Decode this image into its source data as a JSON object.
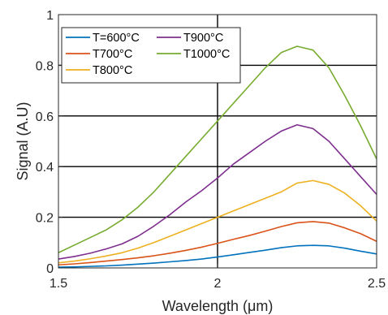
{
  "chart_data": {
    "type": "line",
    "xlabel": "Wavelength (",
    "xlabel_unit": "μm",
    "xlabel_close": ")",
    "ylabel": "Signal (A.U)",
    "xlim": [
      1.5,
      2.5
    ],
    "ylim": [
      0,
      1
    ],
    "xticks": [
      1.5,
      2,
      2.5
    ],
    "xtick_labels": [
      "1.5",
      "2",
      "2.5"
    ],
    "yticks": [
      0,
      0.2,
      0.4,
      0.6,
      0.8,
      1
    ],
    "ytick_labels": [
      "0",
      "0.2",
      "0.4",
      "0.6",
      "0.8",
      "1"
    ],
    "grid": true,
    "legend_position": "top-left",
    "legend_columns": 2,
    "series": [
      {
        "name": "T=600°C",
        "color": "#0072BD",
        "x": [
          1.5,
          1.55,
          1.6,
          1.65,
          1.7,
          1.75,
          1.8,
          1.85,
          1.9,
          1.95,
          2.0,
          2.05,
          2.1,
          2.15,
          2.2,
          2.25,
          2.3,
          2.35,
          2.4,
          2.45,
          2.5
        ],
        "y": [
          0.003,
          0.004,
          0.006,
          0.008,
          0.011,
          0.015,
          0.019,
          0.024,
          0.029,
          0.035,
          0.043,
          0.052,
          0.061,
          0.07,
          0.08,
          0.087,
          0.089,
          0.087,
          0.078,
          0.066,
          0.055
        ]
      },
      {
        "name": "T700°C",
        "color": "#D95319",
        "x": [
          1.5,
          1.55,
          1.6,
          1.65,
          1.7,
          1.75,
          1.8,
          1.85,
          1.9,
          1.95,
          2.0,
          2.05,
          2.1,
          2.15,
          2.2,
          2.25,
          2.3,
          2.35,
          2.4,
          2.45,
          2.5
        ],
        "y": [
          0.012,
          0.016,
          0.021,
          0.027,
          0.033,
          0.04,
          0.048,
          0.058,
          0.069,
          0.082,
          0.097,
          0.113,
          0.128,
          0.145,
          0.163,
          0.178,
          0.183,
          0.177,
          0.158,
          0.135,
          0.105
        ]
      },
      {
        "name": "T800°C",
        "color": "#EDB120",
        "x": [
          1.5,
          1.55,
          1.6,
          1.65,
          1.7,
          1.75,
          1.8,
          1.85,
          1.9,
          1.95,
          2.0,
          2.05,
          2.1,
          2.15,
          2.2,
          2.25,
          2.3,
          2.35,
          2.4,
          2.45,
          2.5
        ],
        "y": [
          0.02,
          0.027,
          0.036,
          0.047,
          0.06,
          0.078,
          0.1,
          0.125,
          0.15,
          0.175,
          0.2,
          0.225,
          0.25,
          0.275,
          0.3,
          0.335,
          0.345,
          0.33,
          0.295,
          0.245,
          0.185
        ]
      },
      {
        "name": "T900°C",
        "color": "#7E2F8E",
        "x": [
          1.5,
          1.55,
          1.6,
          1.65,
          1.7,
          1.75,
          1.8,
          1.85,
          1.9,
          1.95,
          2.0,
          2.05,
          2.1,
          2.15,
          2.2,
          2.25,
          2.3,
          2.35,
          2.4,
          2.45,
          2.5
        ],
        "y": [
          0.035,
          0.045,
          0.058,
          0.075,
          0.095,
          0.125,
          0.165,
          0.21,
          0.26,
          0.305,
          0.355,
          0.41,
          0.455,
          0.5,
          0.54,
          0.565,
          0.55,
          0.5,
          0.43,
          0.36,
          0.29
        ]
      },
      {
        "name": "T1000°C",
        "color": "#77AC30",
        "x": [
          1.5,
          1.55,
          1.6,
          1.65,
          1.7,
          1.75,
          1.8,
          1.85,
          1.9,
          1.95,
          2.0,
          2.05,
          2.1,
          2.15,
          2.2,
          2.25,
          2.3,
          2.35,
          2.4,
          2.45,
          2.5
        ],
        "y": [
          0.06,
          0.09,
          0.12,
          0.15,
          0.19,
          0.24,
          0.3,
          0.37,
          0.44,
          0.51,
          0.58,
          0.65,
          0.72,
          0.79,
          0.85,
          0.875,
          0.86,
          0.79,
          0.68,
          0.56,
          0.43
        ]
      }
    ]
  }
}
